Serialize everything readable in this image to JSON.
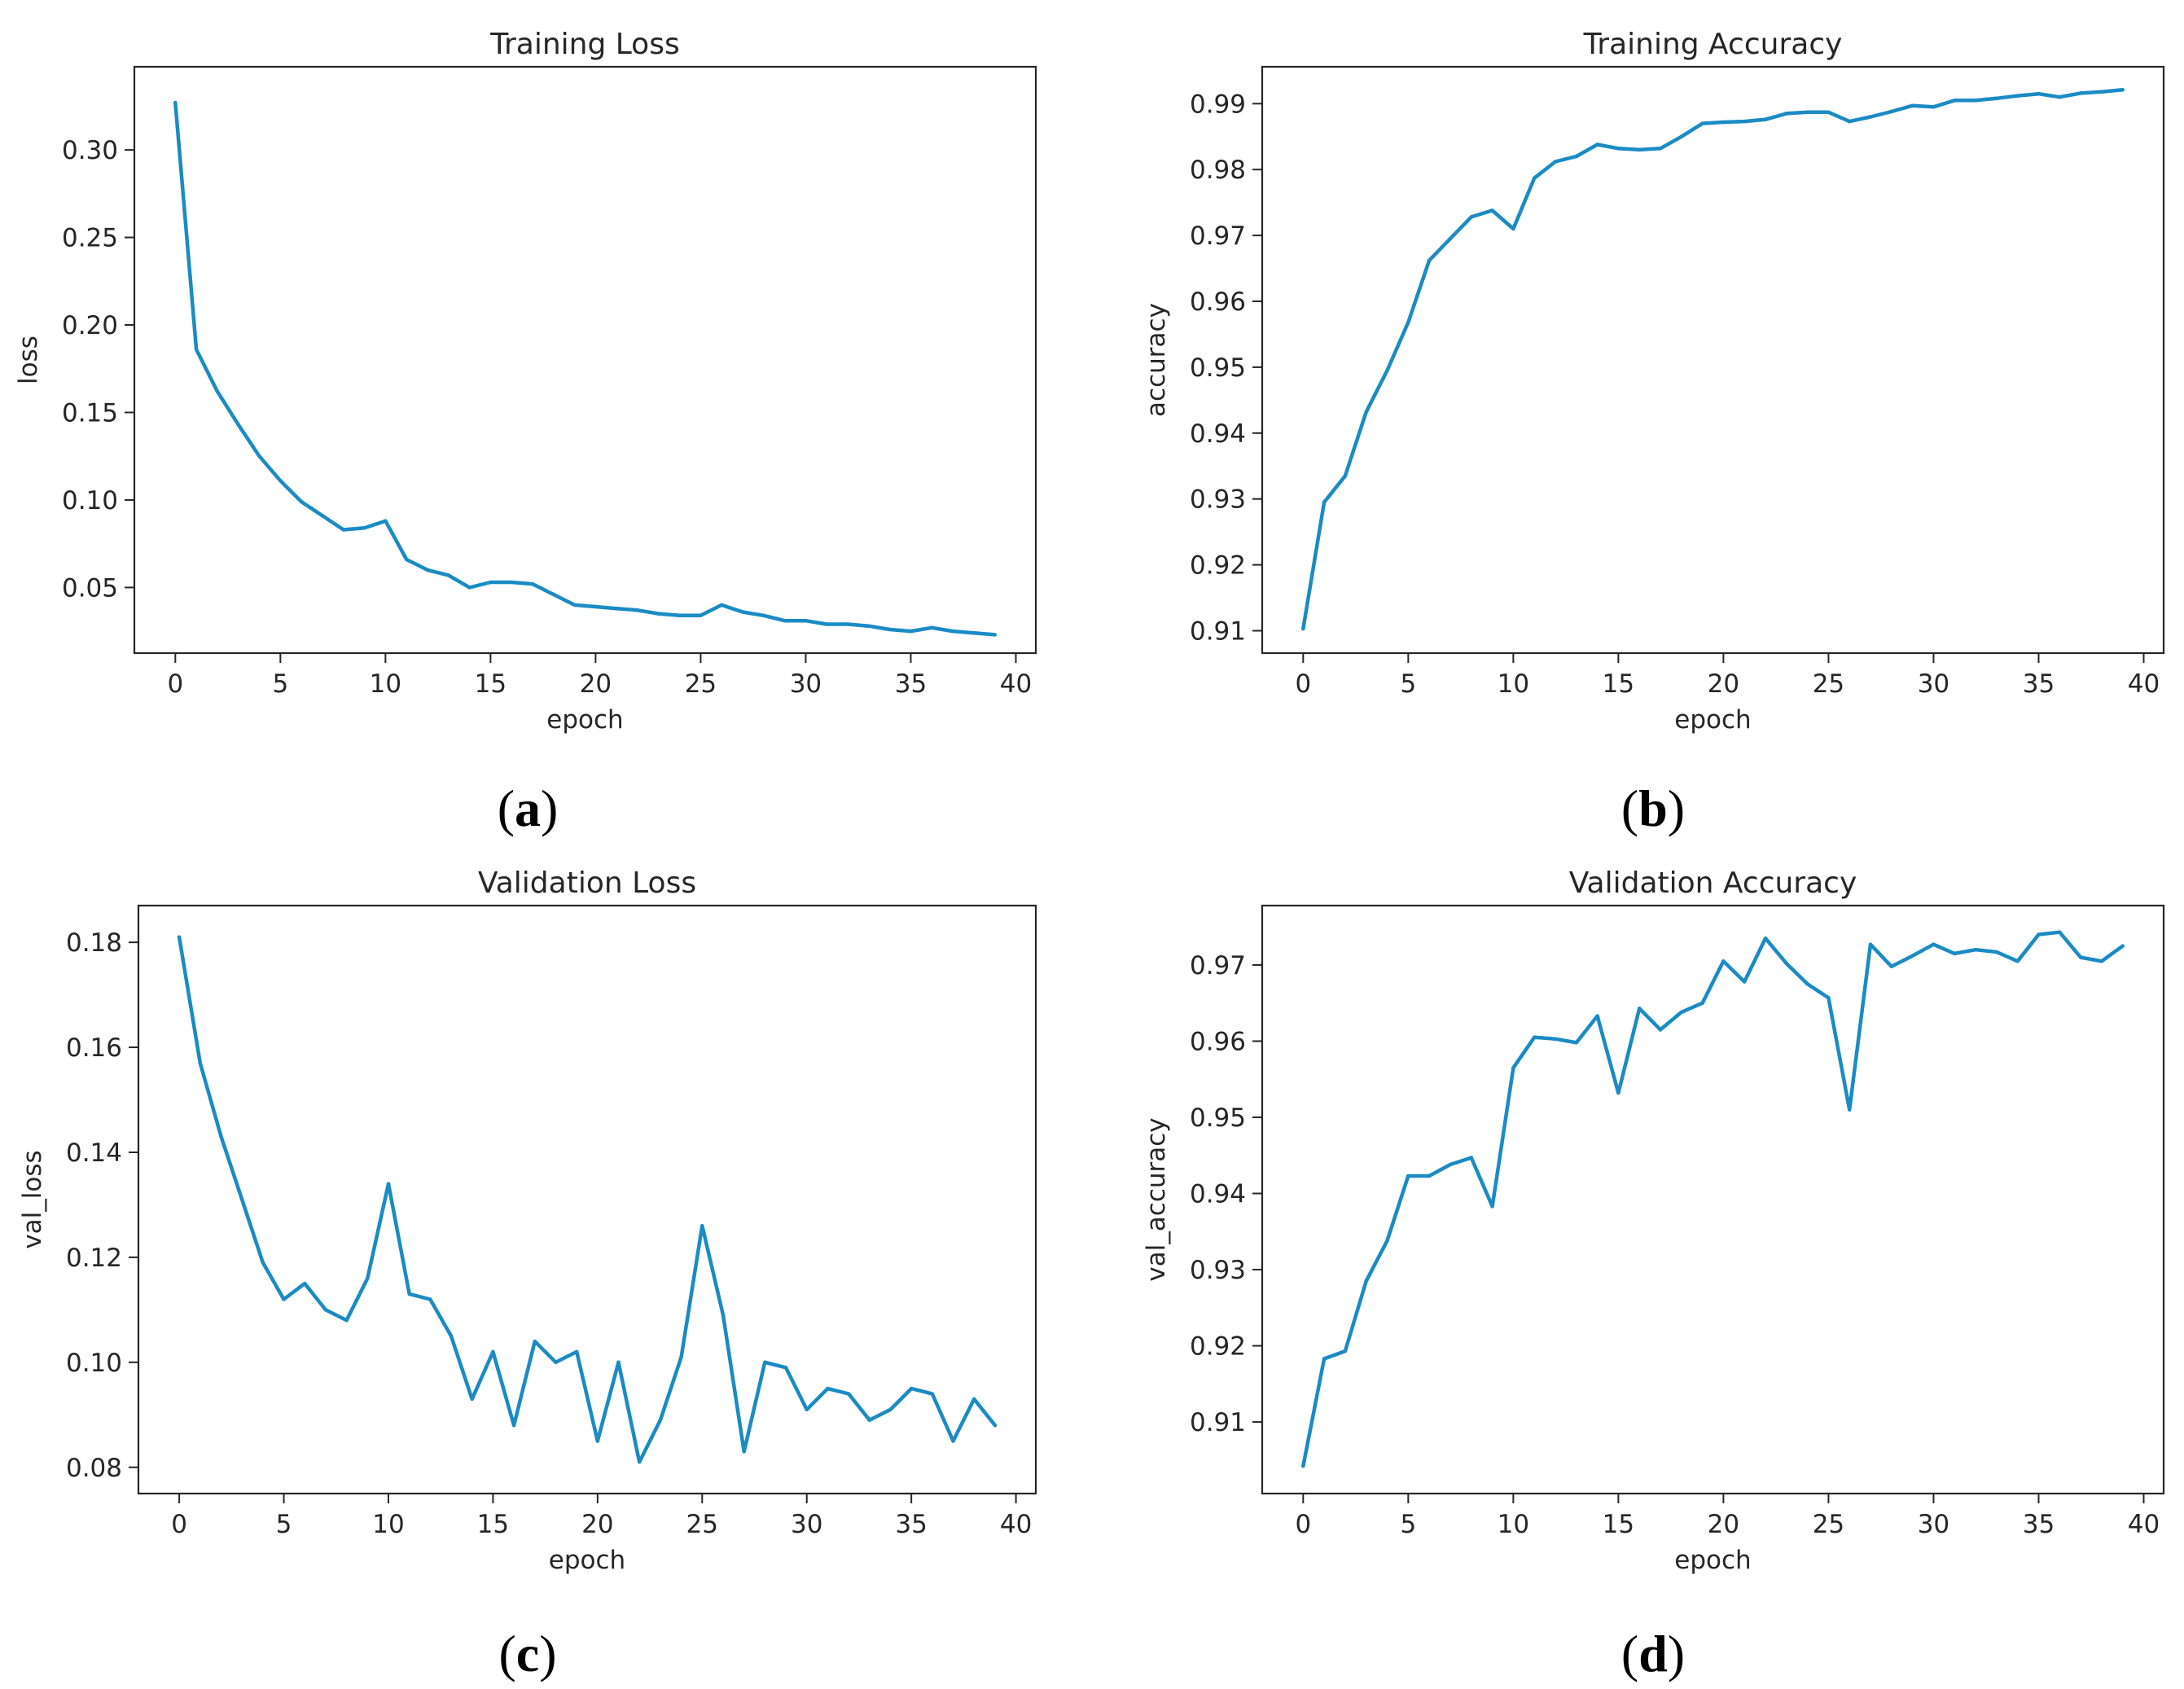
{
  "colors": {
    "line": "#1a8bc4",
    "axis": "#262626"
  },
  "chart_data": [
    {
      "id": "a",
      "type": "line",
      "title": "Training Loss",
      "xlabel": "epoch",
      "ylabel": "loss",
      "caption": {
        "open": "(",
        "letter": "a",
        "close": ")"
      },
      "xlim": [
        -1.95,
        40.95
      ],
      "ylim": [
        0.0125,
        0.3475
      ],
      "xticks": [
        0,
        5,
        10,
        15,
        20,
        25,
        30,
        35,
        40
      ],
      "xtick_labels": [
        "0",
        "5",
        "10",
        "15",
        "20",
        "25",
        "30",
        "35",
        "40"
      ],
      "yticks": [
        0.05,
        0.1,
        0.15,
        0.2,
        0.25,
        0.3
      ],
      "ytick_labels": [
        "0.05",
        "0.10",
        "0.15",
        "0.20",
        "0.25",
        "0.30"
      ],
      "series": [
        {
          "name": "loss",
          "x": [
            0,
            1,
            2,
            3,
            4,
            5,
            6,
            7,
            8,
            9,
            10,
            11,
            12,
            13,
            14,
            15,
            16,
            17,
            18,
            19,
            20,
            21,
            22,
            23,
            24,
            25,
            26,
            27,
            28,
            29,
            30,
            31,
            32,
            33,
            34,
            35,
            36,
            37,
            38,
            39
          ],
          "values": [
            0.327,
            0.186,
            0.162,
            0.143,
            0.125,
            0.111,
            0.099,
            0.091,
            0.083,
            0.084,
            0.088,
            0.066,
            0.06,
            0.057,
            0.05,
            0.053,
            0.053,
            0.052,
            0.046,
            0.04,
            0.039,
            0.038,
            0.037,
            0.035,
            0.034,
            0.034,
            0.04,
            0.036,
            0.034,
            0.031,
            0.031,
            0.029,
            0.029,
            0.028,
            0.026,
            0.025,
            0.027,
            0.025,
            0.024,
            0.023
          ]
        }
      ]
    },
    {
      "id": "b",
      "type": "line",
      "title": "Training Accuracy",
      "xlabel": "epoch",
      "ylabel": "accuracy",
      "caption": {
        "open": "(",
        "letter": "b",
        "close": ")"
      },
      "xlim": [
        -1.95,
        40.95
      ],
      "ylim": [
        0.9066,
        0.9956
      ],
      "xticks": [
        0,
        5,
        10,
        15,
        20,
        25,
        30,
        35,
        40
      ],
      "xtick_labels": [
        "0",
        "5",
        "10",
        "15",
        "20",
        "25",
        "30",
        "35",
        "40"
      ],
      "yticks": [
        0.91,
        0.92,
        0.93,
        0.94,
        0.95,
        0.96,
        0.97,
        0.98,
        0.99
      ],
      "ytick_labels": [
        "0.91",
        "0.92",
        "0.93",
        "0.94",
        "0.95",
        "0.96",
        "0.97",
        "0.98",
        "0.99"
      ],
      "series": [
        {
          "name": "accuracy",
          "x": [
            0,
            1,
            2,
            3,
            4,
            5,
            6,
            7,
            8,
            9,
            10,
            11,
            12,
            13,
            14,
            15,
            16,
            17,
            18,
            19,
            20,
            21,
            22,
            23,
            24,
            25,
            26,
            27,
            28,
            29,
            30,
            31,
            32,
            33,
            34,
            35,
            36,
            37,
            38,
            39
          ],
          "values": [
            0.9103,
            0.9295,
            0.9335,
            0.9432,
            0.9495,
            0.9568,
            0.9662,
            0.9695,
            0.9728,
            0.9738,
            0.971,
            0.9787,
            0.9812,
            0.982,
            0.9838,
            0.9832,
            0.983,
            0.9832,
            0.985,
            0.987,
            0.9872,
            0.9873,
            0.9876,
            0.9885,
            0.9887,
            0.9887,
            0.9873,
            0.988,
            0.9888,
            0.9897,
            0.9895,
            0.9905,
            0.9905,
            0.9908,
            0.9912,
            0.9915,
            0.991,
            0.9916,
            0.9918,
            0.9921
          ]
        }
      ]
    },
    {
      "id": "c",
      "type": "line",
      "title": "Validation Loss",
      "xlabel": "epoch",
      "ylabel": "val_loss",
      "caption": {
        "open": "(",
        "letter": "c",
        "close": ")"
      },
      "xlim": [
        -1.95,
        40.95
      ],
      "ylim": [
        0.075,
        0.187
      ],
      "xticks": [
        0,
        5,
        10,
        15,
        20,
        25,
        30,
        35,
        40
      ],
      "xtick_labels": [
        "0",
        "5",
        "10",
        "15",
        "20",
        "25",
        "30",
        "35",
        "40"
      ],
      "yticks": [
        0.08,
        0.1,
        0.12,
        0.14,
        0.16,
        0.18
      ],
      "ytick_labels": [
        "0.08",
        "0.10",
        "0.12",
        "0.14",
        "0.16",
        "0.18"
      ],
      "series": [
        {
          "name": "val_loss",
          "x": [
            0,
            1,
            2,
            3,
            4,
            5,
            6,
            7,
            8,
            9,
            10,
            11,
            12,
            13,
            14,
            15,
            16,
            17,
            18,
            19,
            20,
            21,
            22,
            23,
            24,
            25,
            26,
            27,
            28,
            29,
            30,
            31,
            32,
            33,
            34,
            35,
            36,
            37,
            38,
            39
          ],
          "values": [
            0.181,
            0.157,
            0.143,
            0.131,
            0.119,
            0.112,
            0.115,
            0.11,
            0.108,
            0.116,
            0.134,
            0.113,
            0.112,
            0.105,
            0.093,
            0.102,
            0.088,
            0.104,
            0.1,
            0.102,
            0.085,
            0.1,
            0.081,
            0.089,
            0.101,
            0.126,
            0.109,
            0.083,
            0.1,
            0.099,
            0.091,
            0.095,
            0.094,
            0.089,
            0.091,
            0.095,
            0.094,
            0.085,
            0.093,
            0.088
          ]
        }
      ]
    },
    {
      "id": "d",
      "type": "line",
      "title": "Validation Accuracy",
      "xlabel": "epoch",
      "ylabel": "val_accuracy",
      "caption": {
        "open": "(",
        "letter": "d",
        "close": ")"
      },
      "xlim": [
        -1.95,
        40.95
      ],
      "ylim": [
        0.9006,
        0.9778
      ],
      "xticks": [
        0,
        5,
        10,
        15,
        20,
        25,
        30,
        35,
        40
      ],
      "xtick_labels": [
        "0",
        "5",
        "10",
        "15",
        "20",
        "25",
        "30",
        "35",
        "40"
      ],
      "yticks": [
        0.91,
        0.92,
        0.93,
        0.94,
        0.95,
        0.96,
        0.97
      ],
      "ytick_labels": [
        "0.91",
        "0.92",
        "0.93",
        "0.94",
        "0.95",
        "0.96",
        "0.97"
      ],
      "series": [
        {
          "name": "val_accuracy",
          "x": [
            0,
            1,
            2,
            3,
            4,
            5,
            6,
            7,
            8,
            9,
            10,
            11,
            12,
            13,
            14,
            15,
            16,
            17,
            18,
            19,
            20,
            21,
            22,
            23,
            24,
            25,
            26,
            27,
            28,
            29,
            30,
            31,
            32,
            33,
            34,
            35,
            36,
            37,
            38,
            39
          ],
          "values": [
            0.9042,
            0.9183,
            0.9193,
            0.9285,
            0.9338,
            0.9423,
            0.9423,
            0.9438,
            0.9447,
            0.9383,
            0.9565,
            0.9605,
            0.9603,
            0.9598,
            0.9633,
            0.9532,
            0.9643,
            0.9615,
            0.9638,
            0.965,
            0.9705,
            0.9678,
            0.9735,
            0.9702,
            0.9675,
            0.9657,
            0.951,
            0.9727,
            0.9698,
            0.9712,
            0.9727,
            0.9715,
            0.972,
            0.9717,
            0.9705,
            0.974,
            0.9743,
            0.971,
            0.9705,
            0.9725
          ]
        }
      ]
    }
  ]
}
